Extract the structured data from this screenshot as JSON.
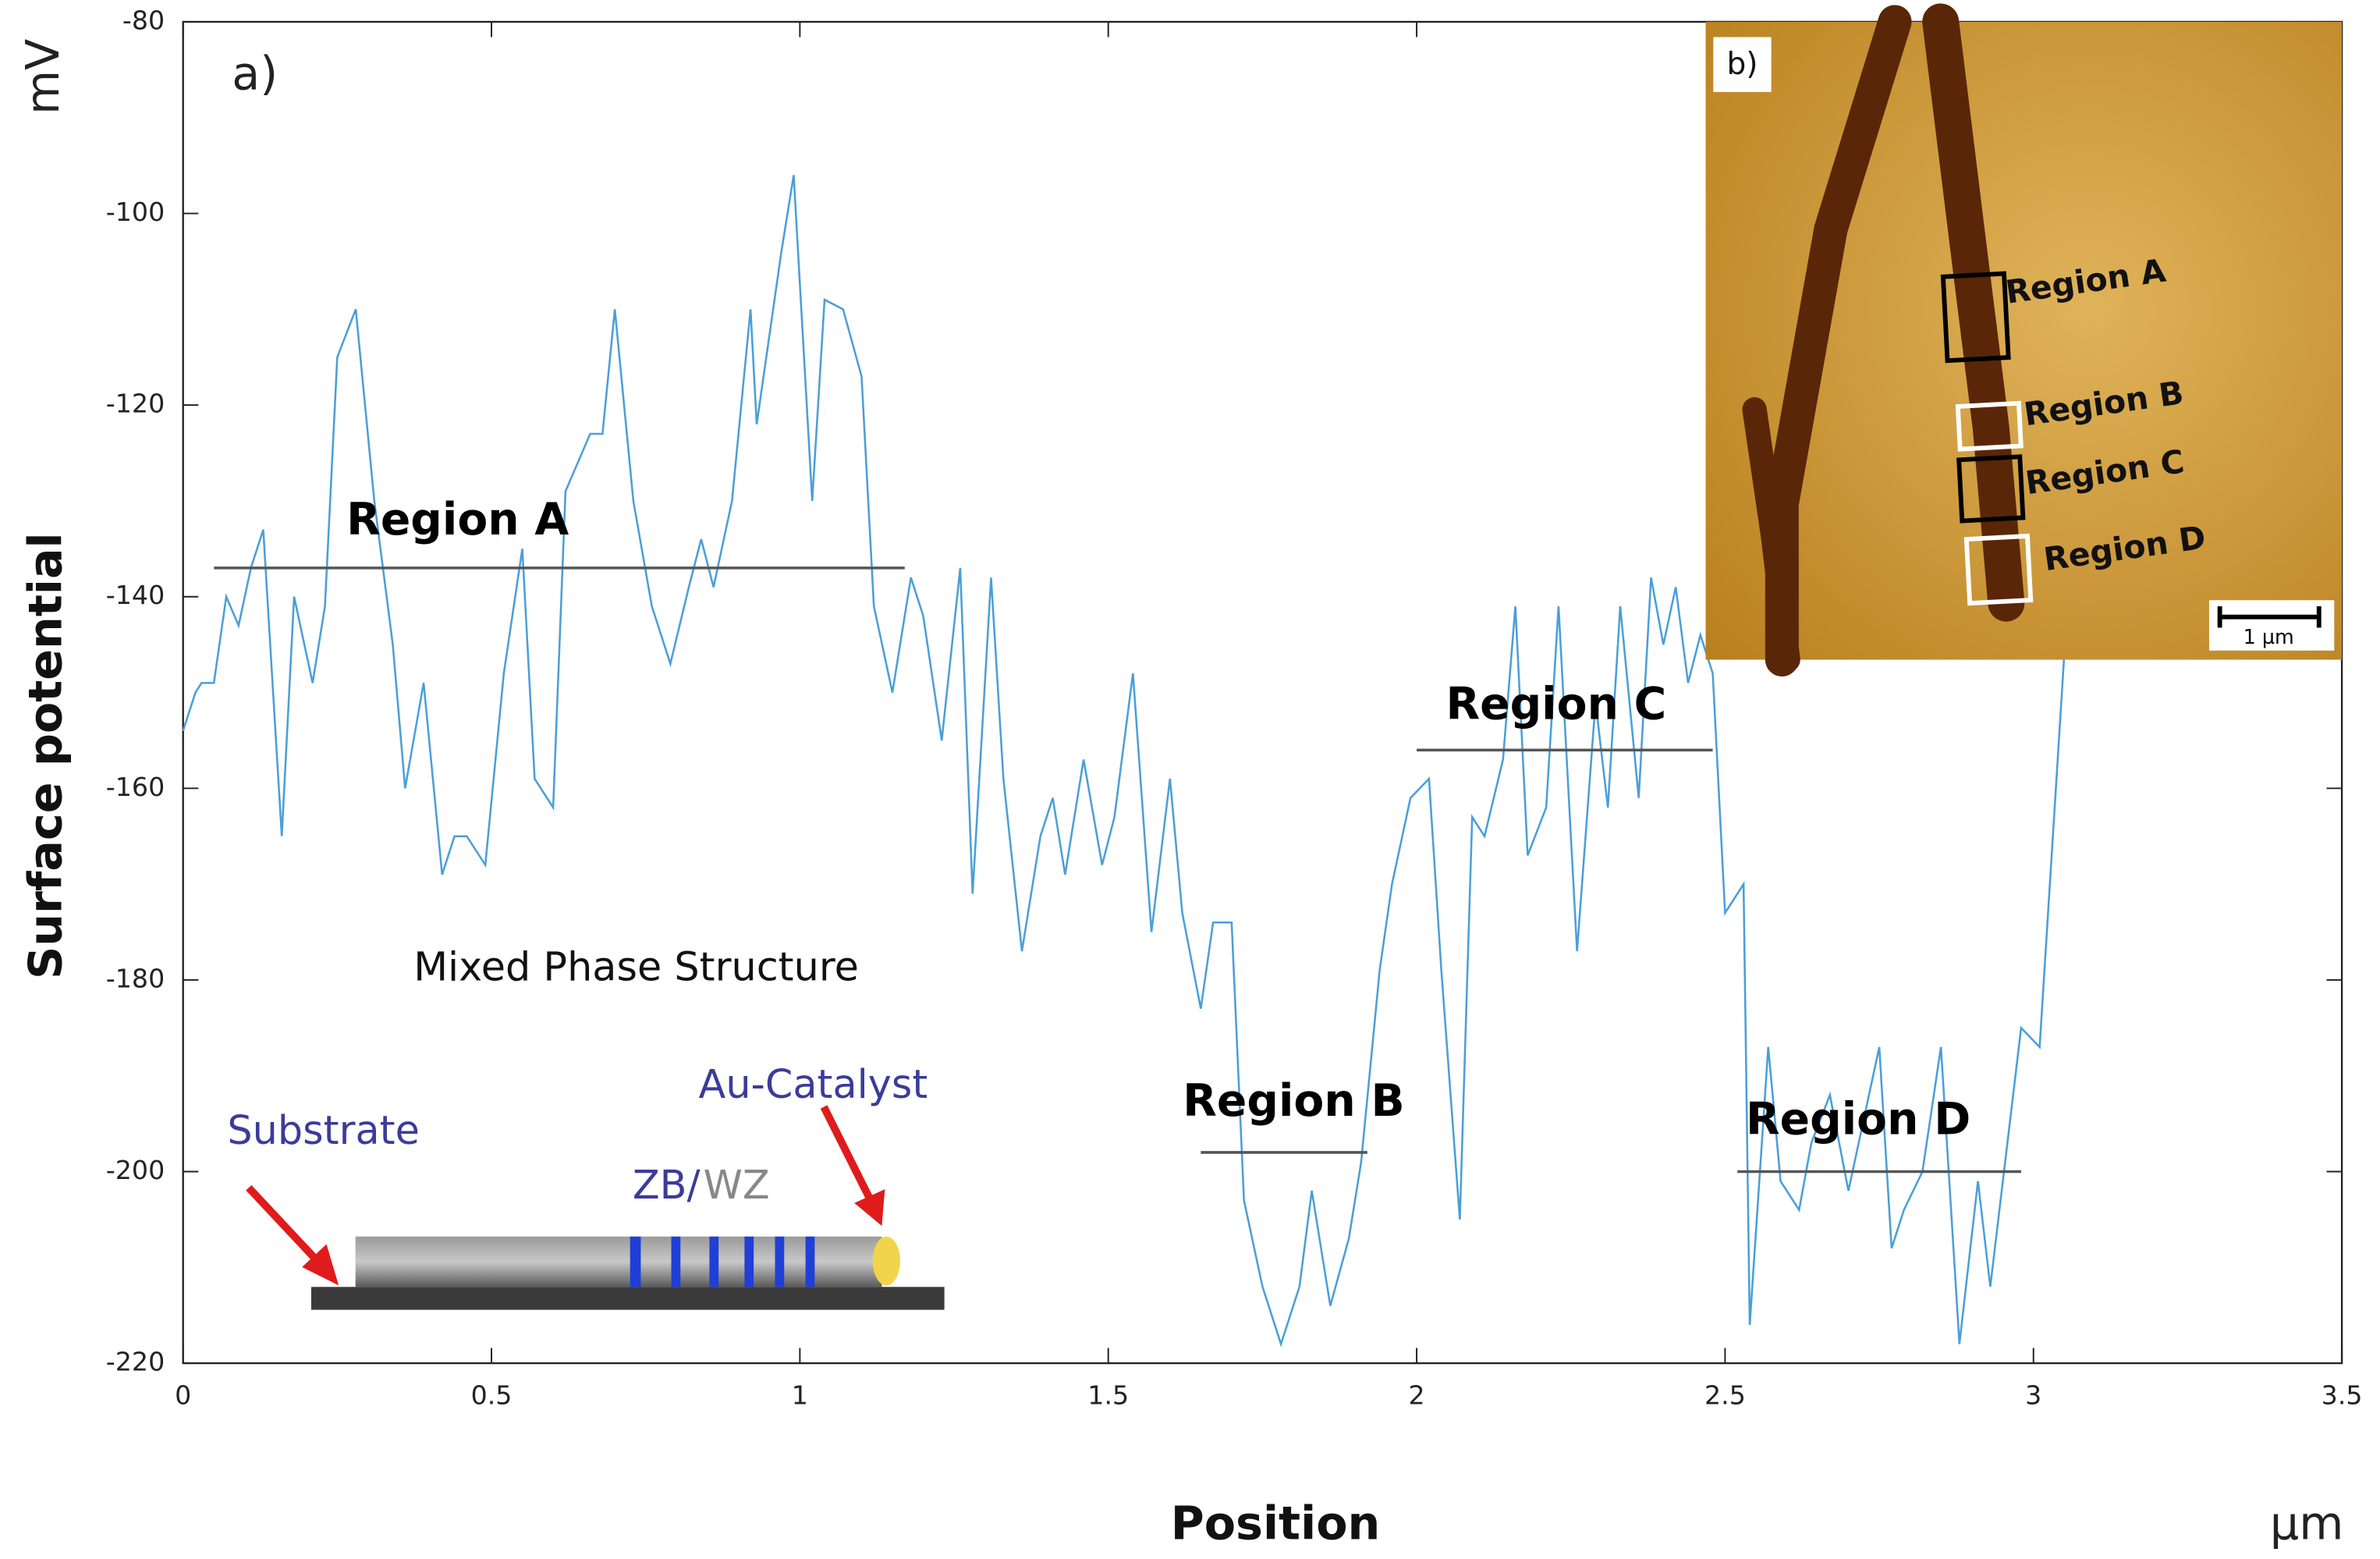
{
  "chart_data": {
    "type": "line",
    "panel_label": "a)",
    "x_label": "Position",
    "x_unit": "µm",
    "y_label": "Surface potential",
    "y_unit": "mV",
    "xlim": [
      0,
      3.5
    ],
    "ylim": [
      -220,
      -80
    ],
    "xticks": [
      0,
      0.5,
      1,
      1.5,
      2,
      2.5,
      3,
      3.5
    ],
    "yticks": [
      -220,
      -200,
      -180,
      -160,
      -140,
      -120,
      -100,
      -80
    ],
    "x": [
      0.0,
      0.02,
      0.03,
      0.05,
      0.07,
      0.09,
      0.11,
      0.13,
      0.16,
      0.18,
      0.21,
      0.23,
      0.25,
      0.28,
      0.31,
      0.34,
      0.36,
      0.39,
      0.42,
      0.44,
      0.46,
      0.49,
      0.52,
      0.55,
      0.57,
      0.6,
      0.62,
      0.66,
      0.68,
      0.7,
      0.73,
      0.76,
      0.79,
      0.82,
      0.84,
      0.86,
      0.89,
      0.92,
      0.93,
      0.97,
      0.99,
      1.02,
      1.04,
      1.07,
      1.1,
      1.12,
      1.15,
      1.18,
      1.2,
      1.23,
      1.26,
      1.28,
      1.31,
      1.33,
      1.36,
      1.39,
      1.41,
      1.43,
      1.46,
      1.49,
      1.51,
      1.54,
      1.57,
      1.6,
      1.62,
      1.65,
      1.67,
      1.7,
      1.72,
      1.75,
      1.78,
      1.81,
      1.83,
      1.86,
      1.89,
      1.91,
      1.94,
      1.96,
      1.99,
      2.02,
      2.04,
      2.07,
      2.09,
      2.11,
      2.14,
      2.16,
      2.18,
      2.21,
      2.23,
      2.26,
      2.29,
      2.31,
      2.33,
      2.36,
      2.38,
      2.4,
      2.42,
      2.44,
      2.46,
      2.48,
      2.5,
      2.53,
      2.54,
      2.57,
      2.59,
      2.62,
      2.64,
      2.67,
      2.7,
      2.72,
      2.75,
      2.77,
      2.79,
      2.82,
      2.85,
      2.88,
      2.91,
      2.93,
      2.98,
      3.01,
      3.05
    ],
    "series": [
      {
        "color": "#4a9fd8",
        "values": [
          -154,
          -150,
          -149,
          -149,
          -140,
          -143,
          -137,
          -133,
          -165,
          -140,
          -149,
          -141,
          -115,
          -110,
          -130,
          -145,
          -160,
          -149,
          -169,
          -165,
          -165,
          -168,
          -148,
          -135,
          -159,
          -162,
          -129,
          -123,
          -123,
          -110,
          -130,
          -141,
          -147,
          -139,
          -134,
          -139,
          -130,
          -110,
          -122,
          -104,
          -96,
          -130,
          -109,
          -110,
          -117,
          -141,
          -150,
          -138,
          -142,
          -155,
          -137,
          -171,
          -138,
          -159,
          -177,
          -165,
          -161,
          -169,
          -157,
          -168,
          -163,
          -148,
          -175,
          -159,
          -173,
          -183,
          -174,
          -174,
          -203,
          -212,
          -218,
          -212,
          -202,
          -214,
          -207,
          -199,
          -179,
          -170,
          -161,
          -159,
          -179,
          -205,
          -163,
          -165,
          -157,
          -141,
          -167,
          -162,
          -141,
          -177,
          -151,
          -162,
          -141,
          -161,
          -138,
          -145,
          -139,
          -149,
          -144,
          -148,
          -173,
          -170,
          -216,
          -187,
          -201,
          -204,
          -197,
          -192,
          -202,
          -196,
          -187,
          -208,
          -204,
          -200,
          -187,
          -218,
          -201,
          -212,
          -185,
          -187,
          -146
        ]
      }
    ],
    "regions": [
      {
        "label": "Region A",
        "xrange": [
          0.05,
          1.17
        ],
        "y": -137
      },
      {
        "label": "Region B",
        "xrange": [
          1.65,
          1.92
        ],
        "y": -198
      },
      {
        "label": "Region C",
        "xrange": [
          2.0,
          2.48
        ],
        "y": -156
      },
      {
        "label": "Region D",
        "xrange": [
          2.52,
          2.98
        ],
        "y": -200
      }
    ],
    "schematic": {
      "title": "Mixed Phase Structure",
      "substrate": "Substrate",
      "catalyst": "Au-Catalyst",
      "zb": "ZB/",
      "wz": "WZ"
    },
    "inset": {
      "label": "b)",
      "regions": [
        "Region A",
        "Region B",
        "Region C",
        "Region D"
      ],
      "scale_bar": "1 µm"
    }
  }
}
